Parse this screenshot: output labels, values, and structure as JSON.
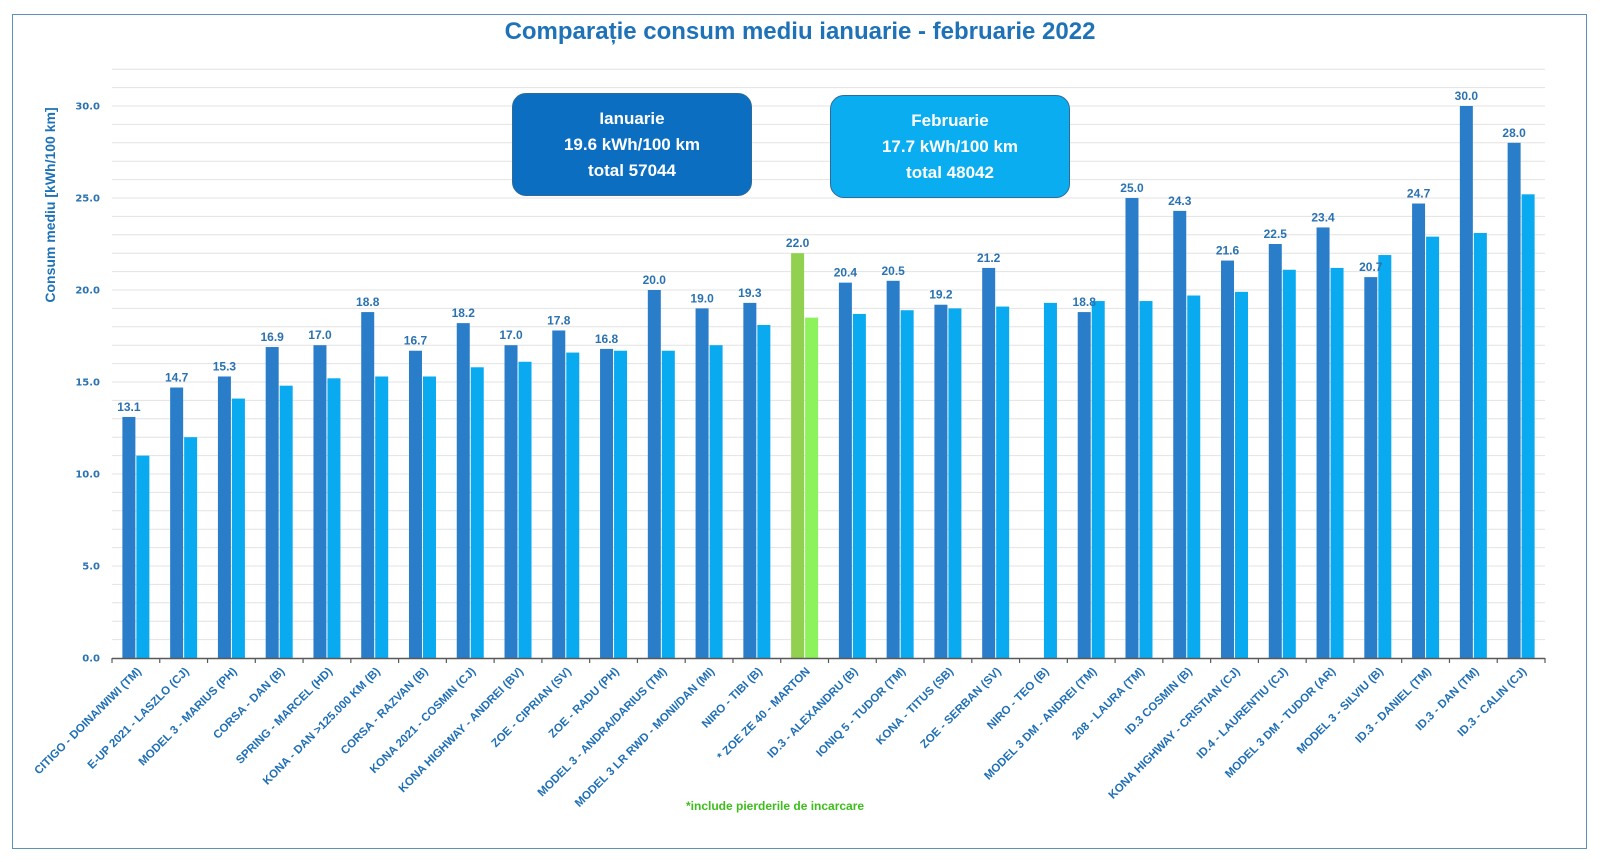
{
  "chart_data": {
    "type": "bar",
    "title": "Comparație consum mediu ianuarie - februarie 2022",
    "xlabel": "",
    "ylabel": "Consum mediu [kWh/100 km]",
    "ylim": [
      0,
      32
    ],
    "yticks": [
      0,
      5,
      10,
      15,
      20,
      25,
      30
    ],
    "ytick_labels": [
      "0.0",
      "5.0",
      "10.0",
      "15.0",
      "20.0",
      "25.0",
      "30.0"
    ],
    "grid": true,
    "grid_step": 1,
    "categories": [
      "CITIGO - DOINA/WIWI (TM)",
      "E-UP 2021 - LASZLO (CJ)",
      "MODEL 3 - MARIUS (PH)",
      "CORSA - DAN (B)",
      "SPRING - MARCEL (HD)",
      "KONA  - DAN  >125.000 KM (B)",
      "CORSA - RAZVAN (B)",
      "KONA 2021 - COSMIN (CJ)",
      "KONA HIGHWAY - ANDREI (BV)",
      "ZOE - CIPRIAN (SV)",
      "ZOE - RADU (PH)",
      "MODEL 3 - ANDRA/DARIUS (TM)",
      "MODEL 3 LR RWD - MONI/DAN (MI)",
      "NIRO - TIBI (B)",
      "* ZOE ZE 40 - MARTON",
      "ID.3 - ALEXANDRU (B)",
      "IONIQ 5 - TUDOR (TM)",
      "KONA - TITUS (SB)",
      "ZOE - SERBAN (SV)",
      "NIRO - TEO (B)",
      "MODEL 3 DM - ANDREI (TM)",
      "208 - LAURA (TM)",
      "ID.3 COSMIN (B)",
      "KONA HIGHWAY - CRISTIAN (CJ)",
      "ID.4 - LAURENTIU (CJ)",
      "MODEL 3 DM - TUDOR (AR)",
      "MODEL 3 - SILVIU (B)",
      "ID.3 - DANIEL (TM)",
      "ID.3 - DAN (TM)",
      "ID.3 - CALIN (CJ)"
    ],
    "series": [
      {
        "name": "Ianuarie",
        "color": "#2a7dc9",
        "values": [
          13.1,
          14.7,
          15.3,
          16.9,
          17.0,
          18.8,
          16.7,
          18.2,
          17.0,
          17.8,
          16.8,
          20.0,
          19.0,
          19.3,
          22.0,
          20.4,
          20.5,
          19.2,
          21.2,
          null,
          18.8,
          25.0,
          24.3,
          21.6,
          22.5,
          23.4,
          20.7,
          24.7,
          30.0,
          28.0
        ],
        "labels": [
          "13.1",
          "14.7",
          "15.3",
          "16.9",
          "17.0",
          "18.8",
          "16.7",
          "18.2",
          "17.0",
          "17.8",
          "16.8",
          "20.0",
          "19.0",
          "19.3",
          "22.0",
          "20.4",
          "20.5",
          "19.2",
          "21.2",
          "",
          "18.8",
          "25.0",
          "24.3",
          "21.6",
          "22.5",
          "23.4",
          "20.7",
          "24.7",
          "30.0",
          "28.0"
        ]
      },
      {
        "name": "Februarie",
        "color": "#0aaaf0",
        "values": [
          11.0,
          12.0,
          14.1,
          14.8,
          15.2,
          15.3,
          15.3,
          15.8,
          16.1,
          16.6,
          16.7,
          16.7,
          17.0,
          18.1,
          18.5,
          18.7,
          18.9,
          19.0,
          19.1,
          19.3,
          19.4,
          19.4,
          19.7,
          19.9,
          21.1,
          21.2,
          21.9,
          22.9,
          23.1,
          25.2
        ]
      }
    ],
    "highlight": {
      "category_index": 14,
      "jan_color": "#92d050",
      "feb_color": "#8ef25c"
    },
    "annotations": {
      "jan_box": {
        "line1": "Ianuarie",
        "line2": "19.6 kWh/100 km",
        "line3": "total  57044",
        "color": "#0b6ec1"
      },
      "feb_box": {
        "line1": "Februarie",
        "line2": "17.7 kWh/100 km",
        "line3": "total  48042",
        "color": "#0aaef0"
      },
      "footnote": "*include pierderile de incarcare"
    }
  }
}
